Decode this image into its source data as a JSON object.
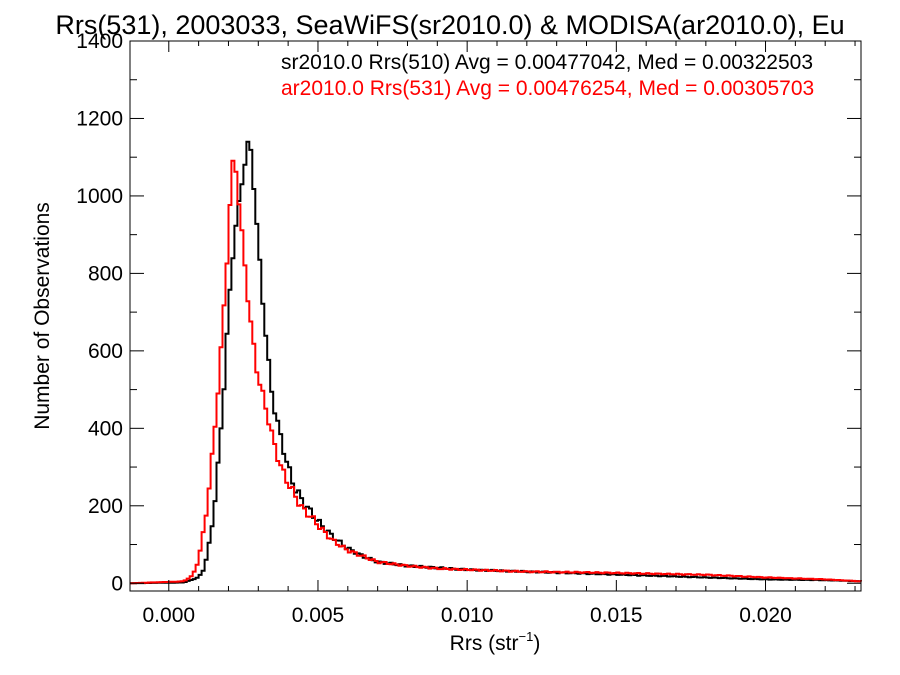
{
  "chart_data": {
    "type": "line",
    "title": "Rrs(531), 2003033, SeaWiFS(sr2010.0) & MODISA(ar2010.0), Eu",
    "xlabel": "Rrs (str",
    "xlabel_sup": "−1",
    "xlabel_close": ")",
    "ylabel": "Number of Observations",
    "xlim": [
      -0.0013,
      0.0232
    ],
    "ylim": [
      -20,
      1400
    ],
    "x_ticks": [
      0.0,
      0.005,
      0.01,
      0.015,
      0.02
    ],
    "x_tick_labels": [
      "0.000",
      "0.005",
      "0.010",
      "0.015",
      "0.020"
    ],
    "y_ticks": [
      0,
      200,
      400,
      600,
      800,
      1000,
      1200,
      1400
    ],
    "y_tick_labels": [
      "0",
      "200",
      "400",
      "600",
      "800",
      "1000",
      "1200",
      "1400"
    ],
    "grid": false,
    "step": true,
    "annotations": [
      {
        "text": "sr2010.0 Rrs(510) Avg = 0.00477042, Med = 0.00322503",
        "color": "#000000"
      },
      {
        "text": "ar2010.0 Rrs(531) Avg = 0.00476254, Med = 0.00305703",
        "color": "#ff0000"
      }
    ],
    "series": [
      {
        "color": "#000000",
        "x": [
          -0.0013,
          0.0005,
          0.001,
          0.0012,
          0.0014,
          0.0016,
          0.0018,
          0.002,
          0.0022,
          0.0024,
          0.0025,
          0.0026,
          0.0027,
          0.0028,
          0.0029,
          0.003,
          0.0031,
          0.0032,
          0.0033,
          0.0034,
          0.0035,
          0.0036,
          0.0038,
          0.004,
          0.0042,
          0.0045,
          0.0048,
          0.005,
          0.0055,
          0.006,
          0.0065,
          0.007,
          0.008,
          0.009,
          0.01,
          0.012,
          0.014,
          0.016,
          0.018,
          0.02,
          0.022,
          0.0232
        ],
        "y": [
          0,
          2,
          15,
          40,
          120,
          250,
          450,
          700,
          900,
          1000,
          1070,
          1110,
          1150,
          1080,
          980,
          870,
          780,
          680,
          610,
          520,
          470,
          430,
          360,
          300,
          250,
          210,
          180,
          160,
          120,
          90,
          70,
          55,
          45,
          40,
          35,
          30,
          25,
          20,
          15,
          10,
          8,
          5
        ]
      },
      {
        "color": "#ff0000",
        "x": [
          -0.0013,
          0.0005,
          0.0008,
          0.001,
          0.0012,
          0.0014,
          0.0016,
          0.0018,
          0.002,
          0.0021,
          0.0022,
          0.0023,
          0.0024,
          0.0025,
          0.0026,
          0.0027,
          0.0028,
          0.0029,
          0.003,
          0.0031,
          0.0032,
          0.0033,
          0.0034,
          0.0036,
          0.0038,
          0.004,
          0.0042,
          0.0045,
          0.0048,
          0.005,
          0.0055,
          0.006,
          0.0065,
          0.007,
          0.008,
          0.009,
          0.01,
          0.012,
          0.014,
          0.016,
          0.018,
          0.02,
          0.022,
          0.0232
        ],
        "y": [
          0,
          5,
          20,
          60,
          150,
          280,
          450,
          650,
          900,
          1050,
          1110,
          1030,
          940,
          860,
          780,
          700,
          640,
          580,
          530,
          500,
          470,
          440,
          400,
          340,
          290,
          260,
          230,
          190,
          170,
          150,
          110,
          85,
          70,
          55,
          45,
          38,
          35,
          30,
          28,
          25,
          22,
          15,
          10,
          5
        ]
      }
    ]
  }
}
